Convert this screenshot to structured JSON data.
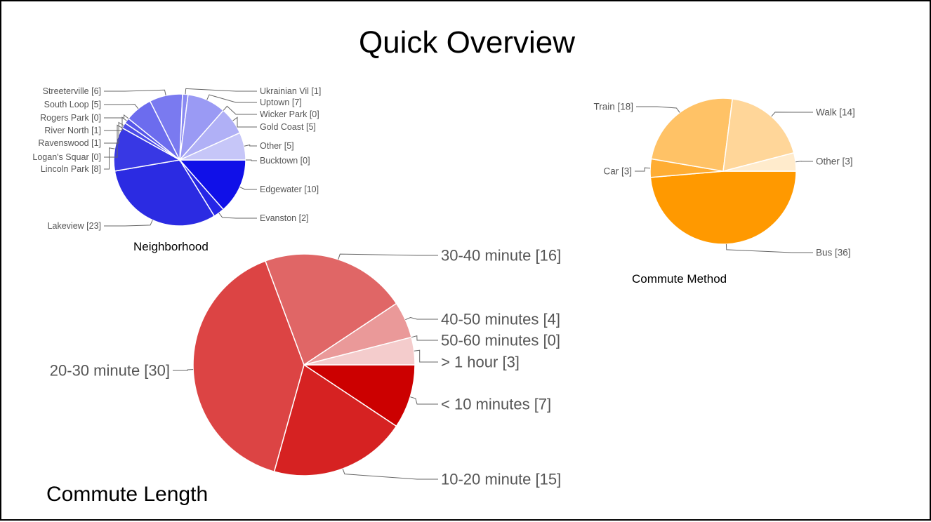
{
  "slide": {
    "title": "Quick Overview",
    "captions": {
      "neighborhood": "Neighborhood",
      "commute_method": "Commute Method",
      "commute_length": "Commute Length"
    }
  },
  "chart_data": [
    {
      "type": "pie",
      "title": "Neighborhood",
      "slices": [
        {
          "label": "Bucktown",
          "value": 0,
          "display": "Bucktown [0]",
          "color": "#1010e8"
        },
        {
          "label": "Edgewater",
          "value": 10,
          "display": "Edgewater [10]",
          "color": "#1010e8"
        },
        {
          "label": "Evanston",
          "value": 2,
          "display": "Evanston [2]",
          "color": "#2626e6"
        },
        {
          "label": "Lakeview",
          "value": 23,
          "display": "Lakeview [23]",
          "color": "#2b2be2"
        },
        {
          "label": "Lincoln Park",
          "value": 8,
          "display": "Lincoln Park [8]",
          "color": "#3838e4"
        },
        {
          "label": "Logan's Squar",
          "value": 0,
          "display": "Logan's Squar [0]",
          "color": "#4242e6"
        },
        {
          "label": "Ravenswood",
          "value": 1,
          "display": "Ravenswood [1]",
          "color": "#4c4ce8"
        },
        {
          "label": "River North",
          "value": 1,
          "display": "River North [1]",
          "color": "#5656ea"
        },
        {
          "label": "Rogers Park",
          "value": 0,
          "display": "Rogers Park [0]",
          "color": "#6262ec"
        },
        {
          "label": "South Loop",
          "value": 5,
          "display": "South Loop [5]",
          "color": "#6c6cee"
        },
        {
          "label": "Streeterville",
          "value": 6,
          "display": "Streeterville [6]",
          "color": "#7a7af0"
        },
        {
          "label": "Ukrainian Vil",
          "value": 1,
          "display": "Ukrainian Vil [1]",
          "color": "#8a8af2"
        },
        {
          "label": "Uptown",
          "value": 7,
          "display": "Uptown [7]",
          "color": "#9a9af4"
        },
        {
          "label": "Wicker Park",
          "value": 0,
          "display": "Wicker Park [0]",
          "color": "#a6a6f5"
        },
        {
          "label": "Gold Coast",
          "value": 5,
          "display": "Gold Coast [5]",
          "color": "#b0b0f6"
        },
        {
          "label": "Other",
          "value": 5,
          "display": "Other [5]",
          "color": "#c6c6f8"
        }
      ]
    },
    {
      "type": "pie",
      "title": "Commute Method",
      "slices": [
        {
          "label": "Bus",
          "value": 36,
          "display": "Bus [36]",
          "color": "#ff9900"
        },
        {
          "label": "Car",
          "value": 3,
          "display": "Car [3]",
          "color": "#ffad33"
        },
        {
          "label": "Train",
          "value": 18,
          "display": "Train [18]",
          "color": "#ffc266"
        },
        {
          "label": "Walk",
          "value": 14,
          "display": "Walk [14]",
          "color": "#ffd699"
        },
        {
          "label": "Other",
          "value": 3,
          "display": "Other [3]",
          "color": "#ffebcc"
        }
      ]
    },
    {
      "type": "pie",
      "title": "Commute Length",
      "slices": [
        {
          "label": "< 10 minutes",
          "value": 7,
          "display": "< 10 minutes [7]",
          "color": "#cc0000"
        },
        {
          "label": "10-20 minute",
          "value": 15,
          "display": "10-20 minute [15]",
          "color": "#d62222"
        },
        {
          "label": "20-30 minute",
          "value": 30,
          "display": "20-30 minute [30]",
          "color": "#dc4444"
        },
        {
          "label": "30-40 minute",
          "value": 16,
          "display": "30-40 minute [16]",
          "color": "#e06666"
        },
        {
          "label": "40-50 minutes",
          "value": 4,
          "display": "40-50 minutes [4]",
          "color": "#ea9999"
        },
        {
          "label": "50-60 minutes",
          "value": 0,
          "display": "50-60 minutes [0]",
          "color": "#f0b4b4"
        },
        {
          "label": "> 1 hour",
          "value": 3,
          "display": "> 1 hour [3]",
          "color": "#f4cccc"
        }
      ]
    }
  ]
}
